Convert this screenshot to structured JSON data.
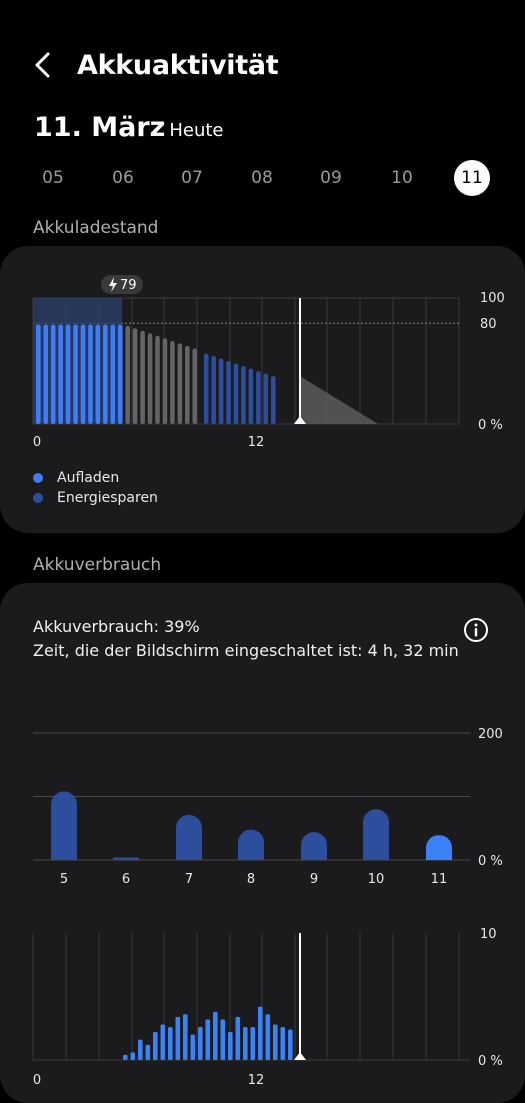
{
  "header": {
    "title": "Akkuaktivität"
  },
  "date": {
    "main": "11. März",
    "sub": "Heute"
  },
  "days": [
    "05",
    "06",
    "07",
    "08",
    "09",
    "10",
    "11"
  ],
  "selected_day_index": 6,
  "sections": {
    "level": "Akkuladestand",
    "usage": "Akkuverbrauch"
  },
  "legend": [
    {
      "label": "Aufladen",
      "color": "#3f7cf5"
    },
    {
      "label": "Energiesparen",
      "color": "#2c4e9c"
    }
  ],
  "usage": {
    "summary": "Akkuverbrauch: 39%",
    "screen_time": "Zeit, die der Bildschirm eingeschaltet ist: 4 h, 32 min"
  },
  "colors": {
    "charging": "#3f7cf5",
    "power_saving": "#2c4e9c",
    "normal": "#646466",
    "daily_bar": "#2c4e9c",
    "daily_bar_today": "#3b82f6",
    "hourly_bar": "#3b82f6"
  },
  "chart_data": [
    {
      "type": "bar",
      "title": "Akkuladestand",
      "x_ticks": [
        "0",
        "12"
      ],
      "y_ticks": [
        "100",
        "80",
        "0 %"
      ],
      "ylim": [
        0,
        100
      ],
      "charge_badge": "79",
      "bars": [
        {
          "v": 79,
          "c": "charging"
        },
        {
          "v": 79,
          "c": "charging"
        },
        {
          "v": 79,
          "c": "charging"
        },
        {
          "v": 79,
          "c": "charging"
        },
        {
          "v": 79,
          "c": "charging"
        },
        {
          "v": 79,
          "c": "charging"
        },
        {
          "v": 79,
          "c": "charging"
        },
        {
          "v": 79,
          "c": "charging"
        },
        {
          "v": 79,
          "c": "charging"
        },
        {
          "v": 79,
          "c": "charging"
        },
        {
          "v": 79,
          "c": "charging"
        },
        {
          "v": 79,
          "c": "charging"
        },
        {
          "v": 78,
          "c": "normal"
        },
        {
          "v": 76,
          "c": "normal"
        },
        {
          "v": 74,
          "c": "normal"
        },
        {
          "v": 72,
          "c": "normal"
        },
        {
          "v": 70,
          "c": "normal"
        },
        {
          "v": 68,
          "c": "normal"
        },
        {
          "v": 66,
          "c": "normal"
        },
        {
          "v": 64,
          "c": "normal"
        },
        {
          "v": 62,
          "c": "normal"
        },
        {
          "v": 60,
          "c": "normal"
        },
        {
          "v": 56,
          "c": "power_saving"
        },
        {
          "v": 54,
          "c": "power_saving"
        },
        {
          "v": 52,
          "c": "power_saving"
        },
        {
          "v": 50,
          "c": "power_saving"
        },
        {
          "v": 48,
          "c": "power_saving"
        },
        {
          "v": 46,
          "c": "power_saving"
        },
        {
          "v": 44,
          "c": "power_saving"
        },
        {
          "v": 42,
          "c": "power_saving"
        },
        {
          "v": 40,
          "c": "power_saving"
        },
        {
          "v": 38,
          "c": "power_saving"
        }
      ],
      "projection": {
        "from": 38,
        "to": 0
      }
    },
    {
      "type": "bar",
      "title": "Akkuverbrauch",
      "categories": [
        "5",
        "6",
        "7",
        "8",
        "9",
        "10",
        "11"
      ],
      "values": [
        108,
        4,
        71,
        48,
        44,
        80,
        39
      ],
      "y_ticks": [
        "200",
        "0 %"
      ],
      "ylim": [
        0,
        200
      ]
    },
    {
      "type": "bar",
      "x_ticks": [
        "0",
        "12"
      ],
      "y_ticks": [
        "10",
        "0 %"
      ],
      "ylim": [
        0,
        10
      ],
      "values": [
        0.4,
        0.6,
        1.6,
        1.2,
        2.2,
        2.8,
        2.6,
        3.4,
        3.6,
        2.0,
        2.6,
        3.2,
        3.8,
        3.2,
        2.2,
        3.4,
        2.6,
        2.6,
        4.2,
        3.6,
        2.8,
        2.6,
        2.4
      ]
    }
  ]
}
